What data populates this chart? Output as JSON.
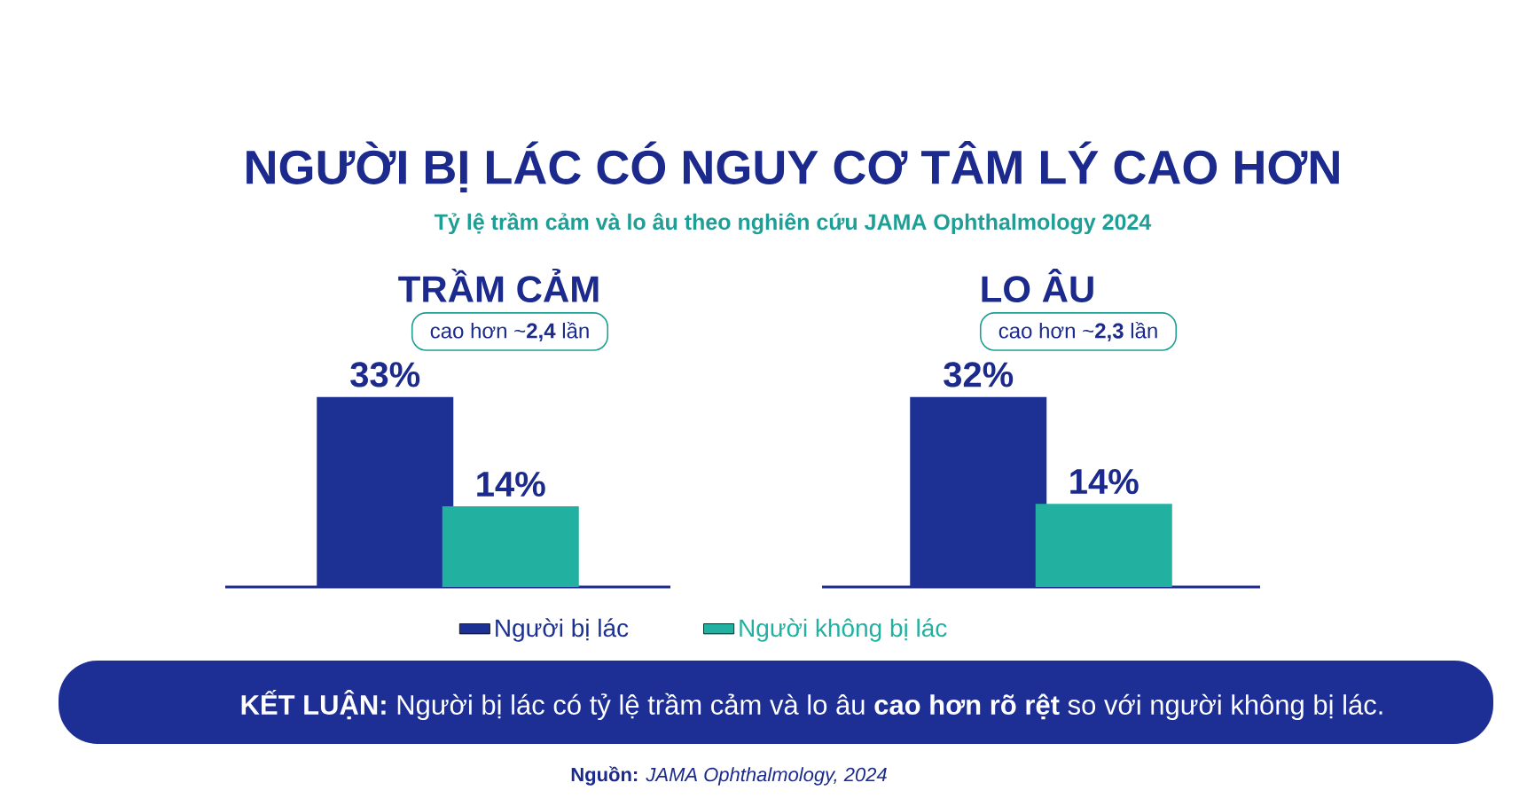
{
  "chart_data": [
    {
      "type": "other",
      "title": "NGƯỜI BỊ LÁC CÓ NGUY CƠ TÂM LÝ CAO HƠN",
      "subtitle": "Tỷ lệ trầm cảm và lo âu theo nghiên cứu JAMA Ophthalmology 2024",
      "annotations": [
        "**KẾT LUẬN:** Người bị lác có tỷ lệ trầm cảm và lo âu **cao hơn rõ rệt** so với người không bị lác.",
        "**Nguồn:** *JAMA Ophthalmology, 2024*"
      ]
    },
    {
      "type": "bar",
      "title": "TRẦM CẢM",
      "subtitle": "cao hơn ~**2,4** lần",
      "categories": [
        null
      ],
      "legend": "bottom",
      "series": [
        {
          "name": "Người bị lác",
          "color": "#1d3194",
          "values": [
            33
          ],
          "value_labels": [
            "33%"
          ]
        },
        {
          "name": "Người không bị lác",
          "color": "#22b1a0",
          "values": [
            14
          ],
          "value_labels": [
            "14%"
          ]
        }
      ]
    },
    {
      "type": "bar",
      "title": "LO ÂU",
      "subtitle": "cao hơn ~**2,3** lần",
      "categories": [
        null
      ],
      "series": [
        {
          "color": "#1d3194",
          "values": [
            32
          ],
          "value_labels": [
            "32%"
          ]
        },
        {
          "color": "#22b1a0",
          "values": [
            14
          ],
          "value_labels": [
            "14%"
          ]
        }
      ]
    }
  ]
}
